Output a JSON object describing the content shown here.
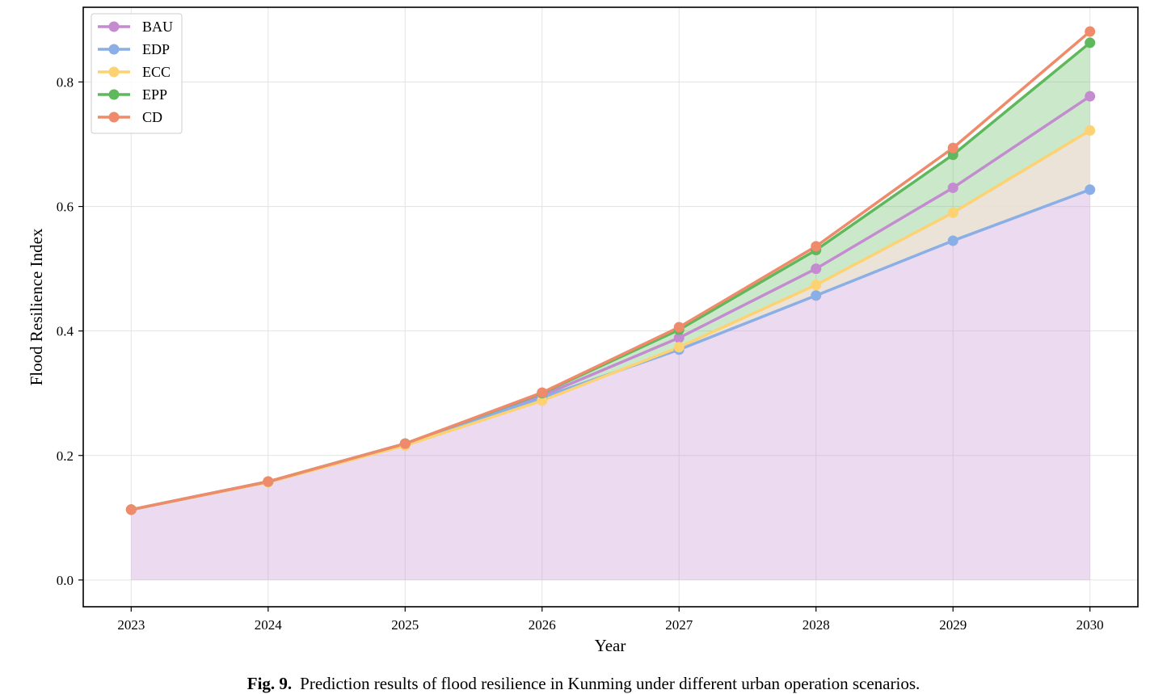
{
  "chart_data": {
    "type": "line",
    "xlabel": "Year",
    "ylabel": "Flood Resilience Index",
    "x": [
      "2023",
      "2024",
      "2025",
      "2026",
      "2027",
      "2028",
      "2029",
      "2030"
    ],
    "xlim": [
      2022.65,
      2030.35
    ],
    "ylim": [
      -0.043,
      0.92
    ],
    "yticks": [
      0.0,
      0.2,
      0.4,
      0.6,
      0.8
    ],
    "ytick_labels": [
      "0.0",
      "0.2",
      "0.4",
      "0.6",
      "0.8"
    ],
    "grid": true,
    "legend_position": "upper-left",
    "series": [
      {
        "name": "BAU",
        "color": "#c48bd1",
        "values": [
          0.113,
          0.158,
          0.219,
          0.296,
          0.389,
          0.5,
          0.63,
          0.777
        ]
      },
      {
        "name": "EDP",
        "color": "#8aaee6",
        "values": [
          0.113,
          0.158,
          0.219,
          0.293,
          0.37,
          0.457,
          0.545,
          0.627
        ]
      },
      {
        "name": "ECC",
        "color": "#fdd272",
        "values": [
          0.113,
          0.157,
          0.216,
          0.288,
          0.374,
          0.474,
          0.59,
          0.722
        ]
      },
      {
        "name": "EPP",
        "color": "#5fb85c",
        "values": [
          0.113,
          0.158,
          0.219,
          0.3,
          0.402,
          0.53,
          0.683,
          0.863
        ]
      },
      {
        "name": "CD",
        "color": "#ef8a6a",
        "values": [
          0.113,
          0.158,
          0.219,
          0.301,
          0.406,
          0.536,
          0.694,
          0.881
        ]
      }
    ],
    "fills": [
      {
        "from": "zero",
        "to": "EDP",
        "color": "#c48bd1",
        "opacity": 0.32
      },
      {
        "from": "EDP",
        "to": "ECC",
        "color": "#e9e0d4",
        "opacity": 0.9
      },
      {
        "from": "ECC",
        "to": "EPP",
        "color": "#5fb85c",
        "opacity": 0.32
      }
    ]
  },
  "caption": {
    "label": "Fig. 9.",
    "text": "Prediction results of flood resilience in Kunming under different urban operation scenarios."
  }
}
